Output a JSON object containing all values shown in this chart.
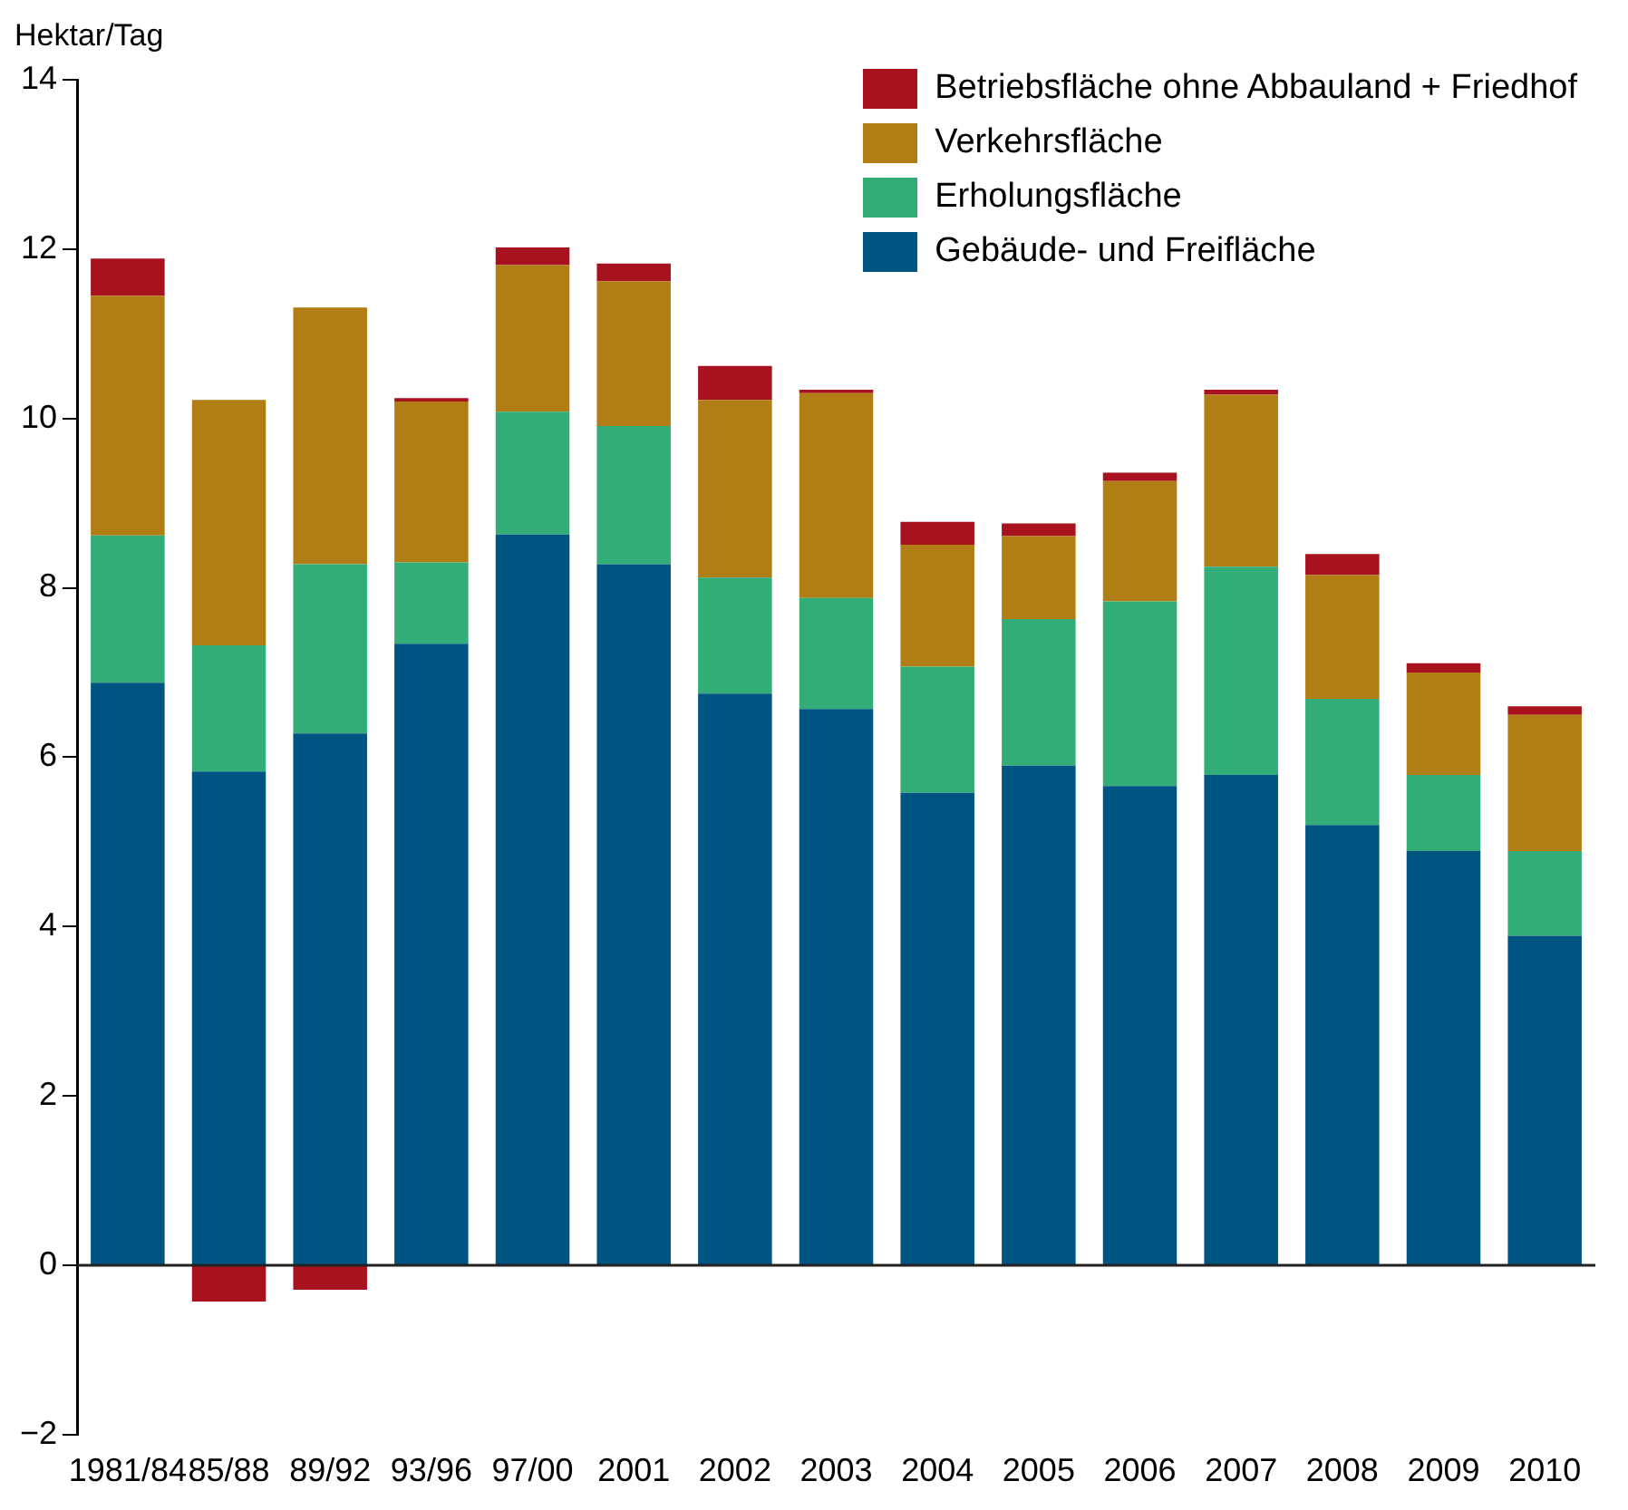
{
  "chart_data": {
    "type": "bar",
    "stacked": true,
    "ylabel": "Hektar/Tag",
    "categories": [
      "1981/84",
      "85/88",
      "89/92",
      "93/96",
      "97/00",
      "2001",
      "2002",
      "2003",
      "2004",
      "2005",
      "2006",
      "2007",
      "2008",
      "2009",
      "2010"
    ],
    "series": [
      {
        "name": "Gebäude- und Freifläche",
        "color": "#005482",
        "values": [
          6.88,
          5.83,
          6.28,
          7.34,
          8.63,
          8.28,
          6.75,
          6.57,
          5.58,
          5.9,
          5.66,
          5.79,
          5.2,
          4.89,
          3.89
        ]
      },
      {
        "name": "Erholungsfläche",
        "color": "#33ad78",
        "values": [
          1.74,
          1.49,
          2.0,
          0.96,
          1.45,
          1.63,
          1.37,
          1.31,
          1.49,
          1.73,
          2.18,
          2.46,
          1.49,
          0.9,
          1.0
        ]
      },
      {
        "name": "Verkehrsfläche",
        "color": "#b07e15",
        "values": [
          2.83,
          2.9,
          3.03,
          1.9,
          1.73,
          1.71,
          2.1,
          2.42,
          1.44,
          0.98,
          1.42,
          2.03,
          1.46,
          1.21,
          1.61
        ]
      },
      {
        "name": "Betriebsfläche ohne Abbauland + Friedhof",
        "color": "#a8121f",
        "values": [
          0.44,
          -0.43,
          -0.29,
          0.04,
          0.21,
          0.21,
          0.4,
          0.04,
          0.27,
          0.15,
          0.1,
          0.06,
          0.25,
          0.11,
          0.1
        ]
      }
    ],
    "ylim": [
      -2,
      14
    ],
    "yticks": [
      {
        "value": -2,
        "label": "−2"
      },
      0,
      2,
      4,
      6,
      8,
      10,
      12,
      14
    ],
    "legend": "top right"
  }
}
